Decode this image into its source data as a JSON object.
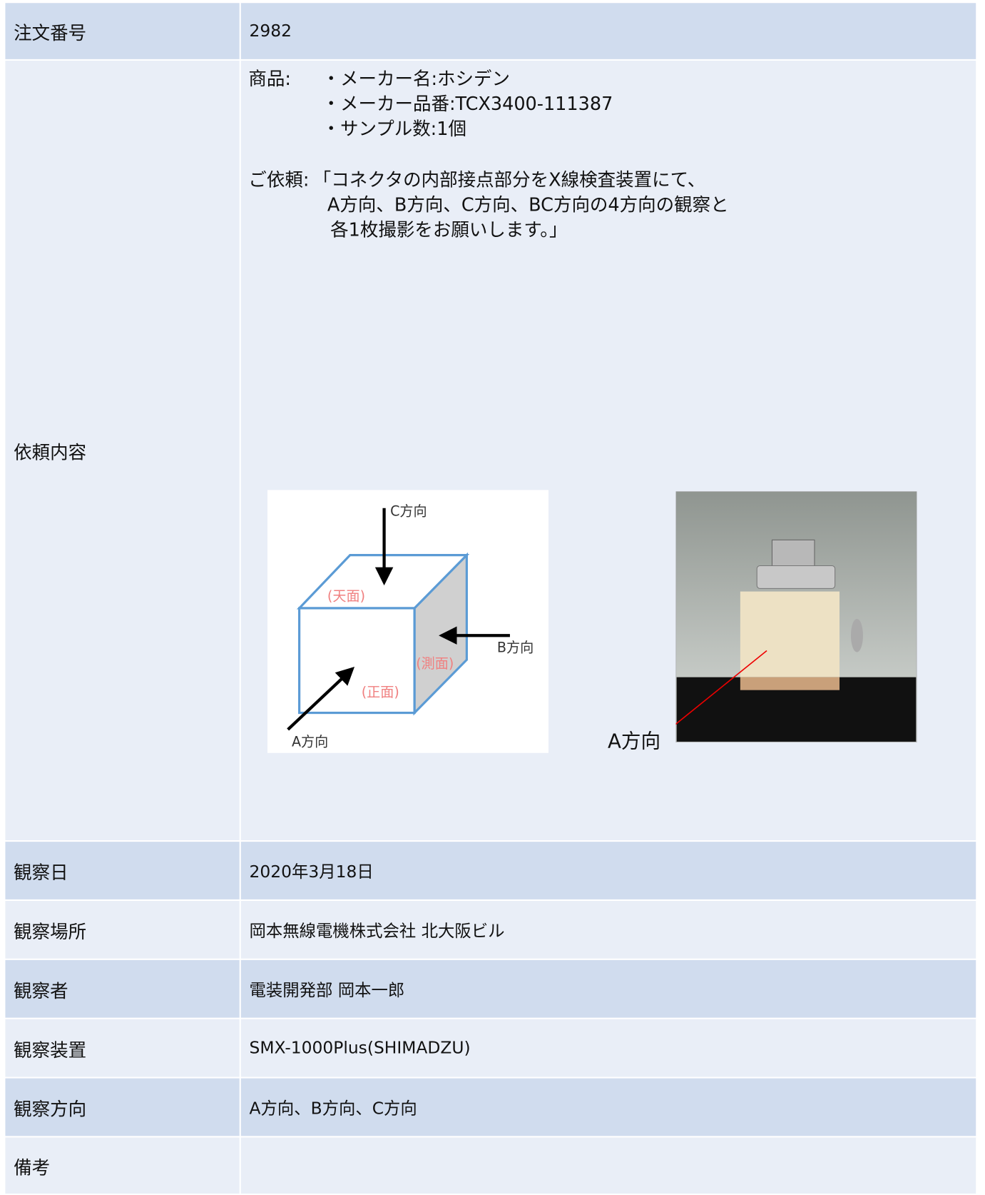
{
  "rows": [
    {
      "label": "注文番号",
      "value": "2982"
    },
    {
      "label": "依頼内容",
      "content": {
        "product_label": "商品:",
        "product_lines": [
          "・メーカー名:ホシデン",
          "・メーカー品番:TCX3400-111387",
          "・サンプル数:1個"
        ],
        "request_label": "ご依頼:",
        "request_lines": [
          "「コネクタの内部接点部分をX線検査装置にて、",
          "A方向、B方向、C方向、BC方向の4方向の観察と",
          "各1枚撮影をお願いします。」"
        ],
        "diagram_labels": {
          "c": "C方向",
          "b": "B方向",
          "a": "A方向",
          "top": "(天面)",
          "side": "(測面)",
          "front": "(正面)"
        },
        "photo_label": "A方向"
      }
    },
    {
      "label": "観察日",
      "value": "2020年3月18日"
    },
    {
      "label": "観察場所",
      "value": "岡本無線電機株式会社  北大阪ビル"
    },
    {
      "label": "観察者",
      "value": "電装開発部  岡本一郎"
    },
    {
      "label": "観察装置",
      "value": "SMX-1000Plus(SHIMADZU)"
    },
    {
      "label": "観察方向",
      "value": "A方向、B方向、C方向"
    },
    {
      "label": "備考",
      "value": ""
    }
  ]
}
